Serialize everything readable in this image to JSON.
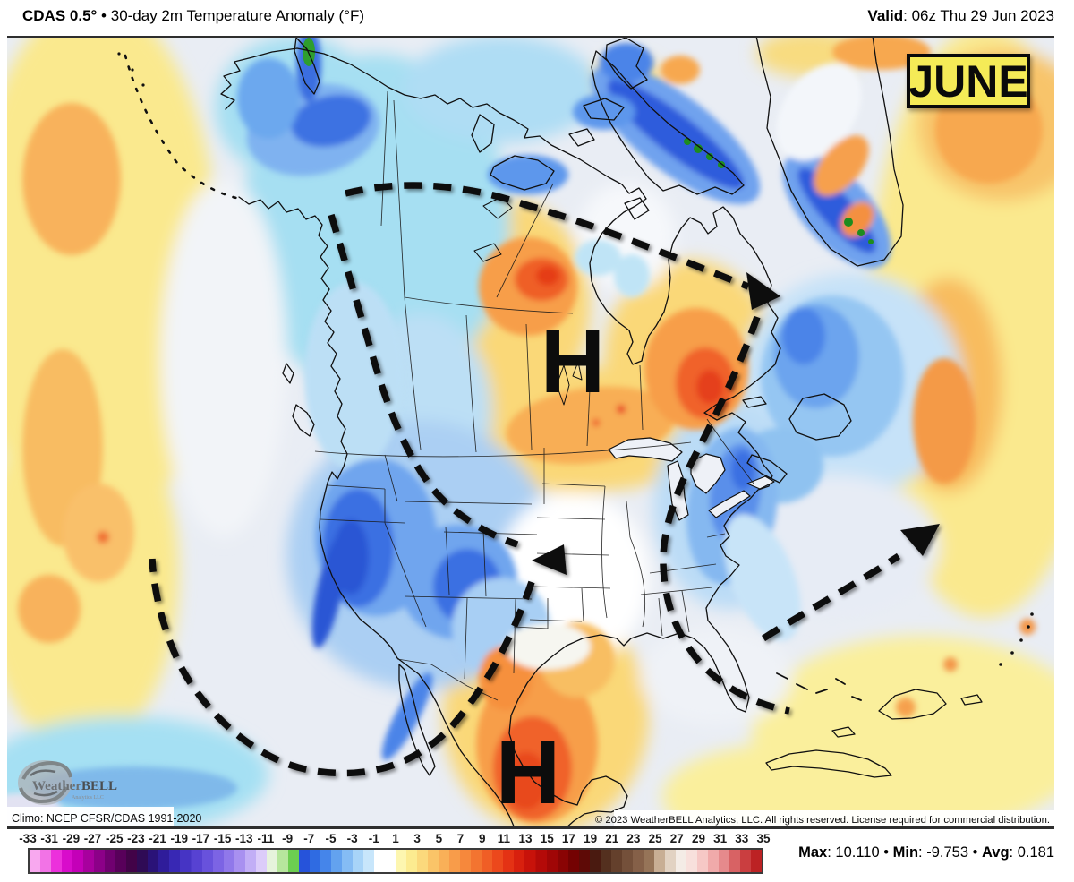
{
  "header": {
    "model": "CDAS 0.5°",
    "bullet": " • ",
    "title": "30-day 2m Temperature Anomaly (°F)",
    "valid_label": "Valid",
    "colon": ": ",
    "valid_value": "06z Thu 29 Jun 2023"
  },
  "badge": {
    "month": "JUNE",
    "bg_color": "#F5EB57"
  },
  "map": {
    "high_marker_1": "H",
    "high_marker_2": "H",
    "climo_note": "Climo: NCEP CFSR/CDAS 1991-2020",
    "copyright": "© 2023 WeatherBELL Analytics, LLC. All rights reserved. License required for commercial distribution.",
    "logo": {
      "name_left": "Weather",
      "name_right": "BELL",
      "tagline": "Analytics LLC"
    }
  },
  "colorbar": {
    "ticks": [
      "-33",
      "-31",
      "-29",
      "-27",
      "-25",
      "-23",
      "-21",
      "-19",
      "-17",
      "-15",
      "-13",
      "-11",
      "-9",
      "-7",
      "-5",
      "-3",
      "-1",
      "1",
      "3",
      "5",
      "7",
      "9",
      "11",
      "13",
      "15",
      "17",
      "19",
      "21",
      "23",
      "25",
      "27",
      "29",
      "31",
      "33",
      "35"
    ],
    "cells": [
      [
        "#F8A8EF",
        "#F273E6"
      ],
      [
        "#EC30DC",
        "#D80CCB"
      ],
      [
        "#C400B8",
        "#A8009E"
      ],
      [
        "#8C0088",
        "#700070"
      ],
      [
        "#58005A",
        "#420348"
      ],
      [
        "#2F0B55",
        "#2A1278"
      ],
      [
        "#2F1C9A",
        "#3828B4"
      ],
      [
        "#4634C4",
        "#5742D2"
      ],
      [
        "#6852DC",
        "#7C64E4"
      ],
      [
        "#9078EA",
        "#A890F0"
      ],
      [
        "#C2AEF6",
        "#DCCCFA"
      ],
      [
        "#E6F3DC",
        "#B6E69C"
      ],
      [
        "#6CCE50",
        "#2653DA"
      ],
      [
        "#2F6BE2",
        "#4585EA"
      ],
      [
        "#63A2EF",
        "#85BCF4"
      ],
      [
        "#A8D4F8",
        "#C8E6FB"
      ],
      [
        "#FFFFFF",
        "#FFFFFF"
      ],
      [
        "#FDF6B0",
        "#FCEB90"
      ],
      [
        "#FBD97C",
        "#FAC468"
      ],
      [
        "#F9B058",
        "#F89C4A"
      ],
      [
        "#F6883C",
        "#F37430"
      ],
      [
        "#F05E26",
        "#EC481C"
      ],
      [
        "#E43214",
        "#D8200E"
      ],
      [
        "#C8120A",
        "#B40A08"
      ],
      [
        "#A00606",
        "#8A0404"
      ],
      [
        "#740202",
        "#5E0A06"
      ],
      [
        "#4A1A10",
        "#54301F"
      ],
      [
        "#64402C",
        "#74503A"
      ],
      [
        "#856048",
        "#967458"
      ],
      [
        "#C8AE94",
        "#E2D2C2"
      ],
      [
        "#F4ECE6",
        "#F8E0DC"
      ],
      [
        "#F6C8C6",
        "#F0AAAA"
      ],
      [
        "#E68A8C",
        "#D86264"
      ],
      [
        "#CA3E40",
        "#BC2224"
      ]
    ]
  },
  "stats": {
    "max_label": "Max",
    "max_value": "10.110",
    "min_label": "Min",
    "min_value": "-9.753",
    "avg_label": "Avg",
    "avg_value": "0.181",
    "colon": ": ",
    "bullet": " • "
  }
}
